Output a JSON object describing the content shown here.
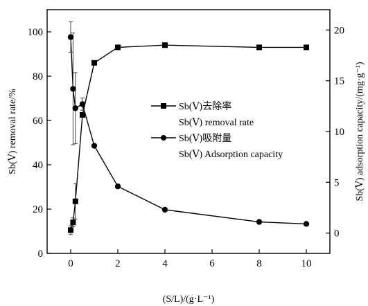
{
  "chart_data": {
    "type": "line",
    "xlabel": "(S/L)/(g·L⁻¹)",
    "ylabel_left": "Sb(Ⅴ) removal rate/%",
    "ylabel_right": "Sb(Ⅴ) adsorption capacity/(mg·g⁻¹)",
    "xlim": [
      -1,
      11
    ],
    "ylim_left": [
      0,
      110
    ],
    "ylim_right": [
      -2,
      22
    ],
    "x_ticks": [
      0,
      2,
      4,
      6,
      8,
      10
    ],
    "y_left_ticks": [
      0,
      20,
      40,
      60,
      80,
      100
    ],
    "y_right_ticks": [
      0,
      5,
      10,
      15,
      20
    ],
    "legend_position": "center",
    "series": [
      {
        "name": "Sb(Ⅴ)去除率",
        "name_en": "Sb(Ⅴ) removal rate",
        "axis": "left",
        "marker": "square",
        "x": [
          0,
          0.1,
          0.2,
          0.5,
          1,
          2,
          4,
          8,
          10
        ],
        "y": [
          10.5,
          14,
          23.5,
          62.5,
          86,
          93,
          94,
          93,
          93
        ],
        "err": [
          2,
          2,
          8,
          1,
          0,
          0,
          0,
          0,
          0
        ]
      },
      {
        "name": "Sb(Ⅴ)吸附量",
        "name_en": "Sb(Ⅴ) Adsorption capacity",
        "axis": "right",
        "marker": "circle",
        "x": [
          0,
          0.1,
          0.2,
          0.5,
          1,
          2,
          4,
          8,
          10
        ],
        "y": [
          19.3,
          14.2,
          12.3,
          12.7,
          8.6,
          4.6,
          2.3,
          1.1,
          0.9
        ],
        "err": [
          1.5,
          5.5,
          3.5,
          0.6,
          0,
          0,
          0,
          0,
          0
        ]
      }
    ]
  }
}
